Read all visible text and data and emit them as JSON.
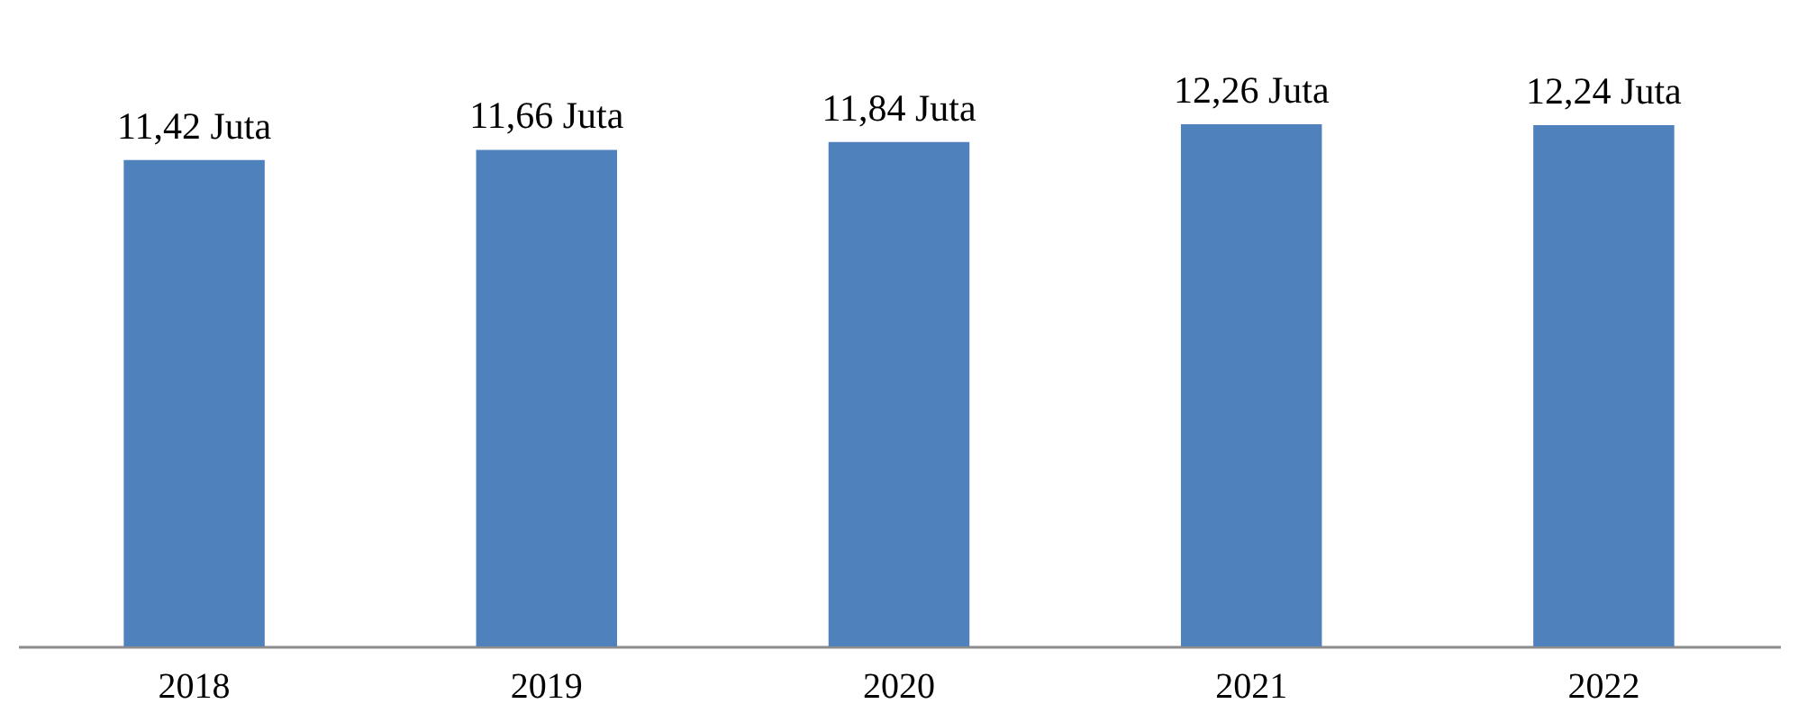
{
  "chart_data": {
    "type": "bar",
    "categories": [
      "2018",
      "2019",
      "2020",
      "2021",
      "2022"
    ],
    "values": [
      11.42,
      11.66,
      11.84,
      12.26,
      12.24
    ],
    "value_labels": [
      "11,42 Juta",
      "11,66 Juta",
      "11,84 Juta",
      "12,26 Juta",
      "12,24 Juta"
    ],
    "color": "#4f81bd",
    "tick_labels": "x"
  }
}
